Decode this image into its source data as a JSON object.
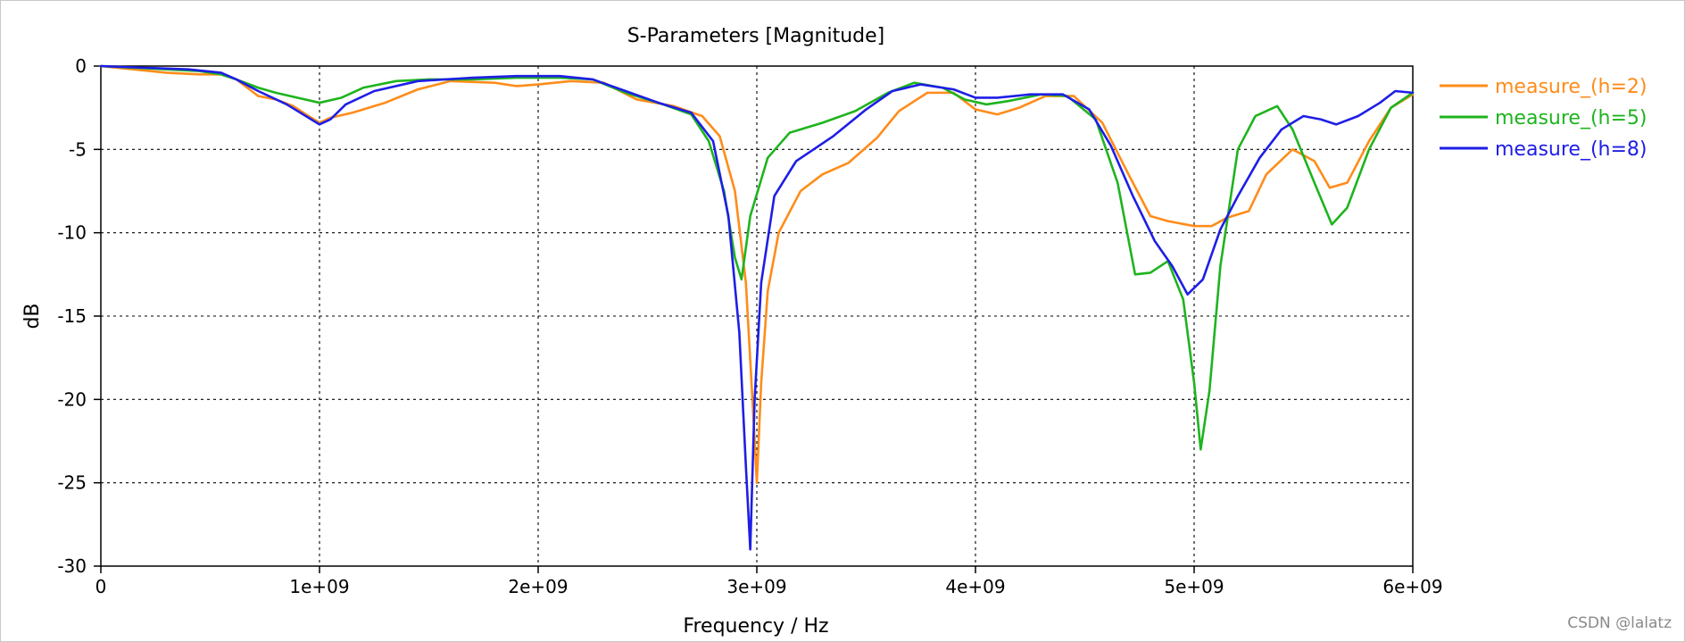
{
  "chart_data": {
    "type": "line",
    "title": "S-Parameters [Magnitude]",
    "xlabel": "Frequency / Hz",
    "ylabel": "dB",
    "xlim": [
      0,
      6000000000
    ],
    "ylim": [
      -30,
      0
    ],
    "x_ticks": [
      0,
      1000000000,
      2000000000,
      3000000000,
      4000000000,
      5000000000,
      6000000000
    ],
    "x_tick_labels": [
      "0",
      "1e+09",
      "2e+09",
      "3e+09",
      "4e+09",
      "5e+09",
      "6e+09"
    ],
    "y_ticks": [
      0,
      -5,
      -10,
      -15,
      -20,
      -25,
      -30
    ],
    "y_tick_labels": [
      "0",
      "-5",
      "-10",
      "-15",
      "-20",
      "-25",
      "-30"
    ],
    "grid": true,
    "legend_position": "right",
    "series": [
      {
        "name": "measure_(h=2)",
        "color": "#ff8c1a",
        "points": [
          [
            0.0,
            0.0
          ],
          [
            150000000.0,
            -0.2
          ],
          [
            300000000.0,
            -0.4
          ],
          [
            450000000.0,
            -0.5
          ],
          [
            550000000.0,
            -0.5
          ],
          [
            620000000.0,
            -0.8
          ],
          [
            720000000.0,
            -1.8
          ],
          [
            800000000.0,
            -2.0
          ],
          [
            880000000.0,
            -2.4
          ],
          [
            950000000.0,
            -3.0
          ],
          [
            1000000000.0,
            -3.4
          ],
          [
            1050000000.0,
            -3.1
          ],
          [
            1150000000.0,
            -2.8
          ],
          [
            1300000000.0,
            -2.2
          ],
          [
            1450000000.0,
            -1.4
          ],
          [
            1600000000.0,
            -0.9
          ],
          [
            1800000000.0,
            -1.0
          ],
          [
            1900000000.0,
            -1.2
          ],
          [
            2000000000.0,
            -1.1
          ],
          [
            2150000000.0,
            -0.9
          ],
          [
            2300000000.0,
            -1.0
          ],
          [
            2450000000.0,
            -2.0
          ],
          [
            2620000000.0,
            -2.4
          ],
          [
            2750000000.0,
            -3.0
          ],
          [
            2830000000.0,
            -4.2
          ],
          [
            2900000000.0,
            -7.5
          ],
          [
            2950000000.0,
            -13.0
          ],
          [
            2980000000.0,
            -20.0
          ],
          [
            3000000000.0,
            -25.0
          ],
          [
            3020000000.0,
            -19.0
          ],
          [
            3050000000.0,
            -13.5
          ],
          [
            3100000000.0,
            -10.0
          ],
          [
            3200000000.0,
            -7.5
          ],
          [
            3300000000.0,
            -6.5
          ],
          [
            3420000000.0,
            -5.8
          ],
          [
            3550000000.0,
            -4.3
          ],
          [
            3650000000.0,
            -2.7
          ],
          [
            3780000000.0,
            -1.6
          ],
          [
            3900000000.0,
            -1.6
          ],
          [
            4000000000.0,
            -2.6
          ],
          [
            4100000000.0,
            -2.9
          ],
          [
            4200000000.0,
            -2.5
          ],
          [
            4320000000.0,
            -1.8
          ],
          [
            4450000000.0,
            -1.8
          ],
          [
            4580000000.0,
            -3.4
          ],
          [
            4700000000.0,
            -6.5
          ],
          [
            4800000000.0,
            -9.0
          ],
          [
            4880000000.0,
            -9.3
          ],
          [
            5000000000.0,
            -9.6
          ],
          [
            5080000000.0,
            -9.6
          ],
          [
            5150000000.0,
            -9.1
          ],
          [
            5250000000.0,
            -8.7
          ],
          [
            5330000000.0,
            -6.5
          ],
          [
            5450000000.0,
            -5.0
          ],
          [
            5550000000.0,
            -5.7
          ],
          [
            5620000000.0,
            -7.3
          ],
          [
            5700000000.0,
            -7.0
          ],
          [
            5800000000.0,
            -4.5
          ],
          [
            5900000000.0,
            -2.5
          ],
          [
            6000000000.0,
            -1.7
          ]
        ]
      },
      {
        "name": "measure_(h=5)",
        "color": "#1eb41e",
        "points": [
          [
            0.0,
            0.0
          ],
          [
            150000000.0,
            -0.1
          ],
          [
            300000000.0,
            -0.2
          ],
          [
            450000000.0,
            -0.3
          ],
          [
            550000000.0,
            -0.5
          ],
          [
            620000000.0,
            -0.8
          ],
          [
            720000000.0,
            -1.3
          ],
          [
            800000000.0,
            -1.6
          ],
          [
            900000000.0,
            -1.9
          ],
          [
            1000000000.0,
            -2.2
          ],
          [
            1100000000.0,
            -1.9
          ],
          [
            1200000000.0,
            -1.3
          ],
          [
            1350000000.0,
            -0.9
          ],
          [
            1500000000.0,
            -0.8
          ],
          [
            1700000000.0,
            -0.8
          ],
          [
            1900000000.0,
            -0.7
          ],
          [
            2100000000.0,
            -0.7
          ],
          [
            2250000000.0,
            -0.8
          ],
          [
            2400000000.0,
            -1.6
          ],
          [
            2550000000.0,
            -2.2
          ],
          [
            2700000000.0,
            -2.9
          ],
          [
            2780000000.0,
            -4.5
          ],
          [
            2850000000.0,
            -7.5
          ],
          [
            2900000000.0,
            -11.5
          ],
          [
            2930000000.0,
            -12.8
          ],
          [
            2970000000.0,
            -9.0
          ],
          [
            3050000000.0,
            -5.5
          ],
          [
            3150000000.0,
            -4.0
          ],
          [
            3300000000.0,
            -3.4
          ],
          [
            3450000000.0,
            -2.7
          ],
          [
            3600000000.0,
            -1.6
          ],
          [
            3720000000.0,
            -1.0
          ],
          [
            3850000000.0,
            -1.3
          ],
          [
            3950000000.0,
            -2.0
          ],
          [
            4050000000.0,
            -2.3
          ],
          [
            4150000000.0,
            -2.1
          ],
          [
            4300000000.0,
            -1.7
          ],
          [
            4420000000.0,
            -1.8
          ],
          [
            4550000000.0,
            -3.2
          ],
          [
            4650000000.0,
            -7.0
          ],
          [
            4730000000.0,
            -12.5
          ],
          [
            4800000000.0,
            -12.4
          ],
          [
            4880000000.0,
            -11.7
          ],
          [
            4950000000.0,
            -14.0
          ],
          [
            5000000000.0,
            -19.0
          ],
          [
            5030000000.0,
            -23.0
          ],
          [
            5070000000.0,
            -19.5
          ],
          [
            5120000000.0,
            -12.0
          ],
          [
            5200000000.0,
            -5.0
          ],
          [
            5280000000.0,
            -3.0
          ],
          [
            5380000000.0,
            -2.4
          ],
          [
            5450000000.0,
            -3.8
          ],
          [
            5550000000.0,
            -7.0
          ],
          [
            5630000000.0,
            -9.5
          ],
          [
            5700000000.0,
            -8.5
          ],
          [
            5800000000.0,
            -5.0
          ],
          [
            5900000000.0,
            -2.5
          ],
          [
            6000000000.0,
            -1.6
          ]
        ]
      },
      {
        "name": "measure_(h=8)",
        "color": "#1e1ee6",
        "points": [
          [
            0.0,
            0.0
          ],
          [
            200000000.0,
            -0.1
          ],
          [
            400000000.0,
            -0.2
          ],
          [
            550000000.0,
            -0.4
          ],
          [
            620000000.0,
            -0.8
          ],
          [
            720000000.0,
            -1.5
          ],
          [
            850000000.0,
            -2.3
          ],
          [
            950000000.0,
            -3.1
          ],
          [
            1000000000.0,
            -3.5
          ],
          [
            1050000000.0,
            -3.2
          ],
          [
            1120000000.0,
            -2.3
          ],
          [
            1250000000.0,
            -1.5
          ],
          [
            1450000000.0,
            -0.9
          ],
          [
            1700000000.0,
            -0.7
          ],
          [
            1900000000.0,
            -0.6
          ],
          [
            2100000000.0,
            -0.6
          ],
          [
            2250000000.0,
            -0.8
          ],
          [
            2400000000.0,
            -1.5
          ],
          [
            2550000000.0,
            -2.2
          ],
          [
            2700000000.0,
            -2.8
          ],
          [
            2800000000.0,
            -4.5
          ],
          [
            2870000000.0,
            -9.0
          ],
          [
            2920000000.0,
            -16.0
          ],
          [
            2950000000.0,
            -24.0
          ],
          [
            2970000000.0,
            -29.0
          ],
          [
            2990000000.0,
            -20.0
          ],
          [
            3020000000.0,
            -13.0
          ],
          [
            3080000000.0,
            -7.8
          ],
          [
            3180000000.0,
            -5.7
          ],
          [
            3350000000.0,
            -4.2
          ],
          [
            3500000000.0,
            -2.6
          ],
          [
            3620000000.0,
            -1.5
          ],
          [
            3750000000.0,
            -1.1
          ],
          [
            3900000000.0,
            -1.4
          ],
          [
            4000000000.0,
            -1.9
          ],
          [
            4100000000.0,
            -1.9
          ],
          [
            4250000000.0,
            -1.7
          ],
          [
            4400000000.0,
            -1.7
          ],
          [
            4520000000.0,
            -2.6
          ],
          [
            4620000000.0,
            -4.8
          ],
          [
            4720000000.0,
            -7.8
          ],
          [
            4820000000.0,
            -10.5
          ],
          [
            4900000000.0,
            -12.0
          ],
          [
            4970000000.0,
            -13.7
          ],
          [
            5040000000.0,
            -12.8
          ],
          [
            5120000000.0,
            -9.8
          ],
          [
            5200000000.0,
            -7.8
          ],
          [
            5300000000.0,
            -5.5
          ],
          [
            5400000000.0,
            -3.8
          ],
          [
            5500000000.0,
            -3.0
          ],
          [
            5580000000.0,
            -3.2
          ],
          [
            5650000000.0,
            -3.5
          ],
          [
            5750000000.0,
            -3.0
          ],
          [
            5850000000.0,
            -2.2
          ],
          [
            5920000000.0,
            -1.5
          ],
          [
            6000000000.0,
            -1.6
          ]
        ]
      }
    ]
  },
  "watermark": "CSDN @lalatz"
}
